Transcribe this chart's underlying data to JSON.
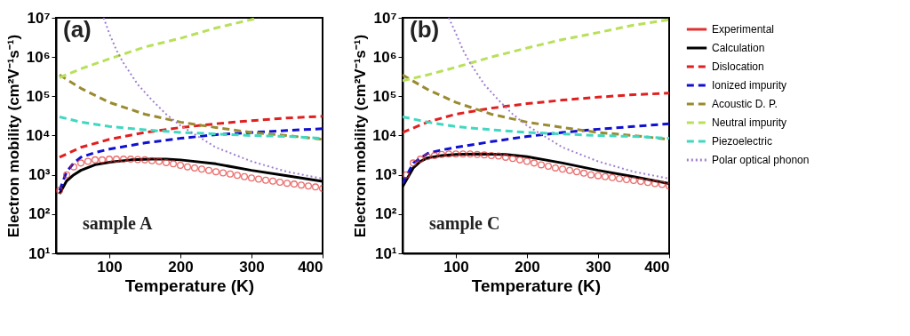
{
  "chart_data": [
    {
      "type": "line",
      "xlabel": "Temperature (K)",
      "ylabel": "Electron mobility (cm²V⁻¹s⁻¹)",
      "log": "y",
      "xlim": [
        25,
        400
      ],
      "xticks": [
        100,
        200,
        300,
        400
      ],
      "ylim": [
        10,
        10000000
      ],
      "yticks": [
        {
          "value": 10,
          "label": "10¹"
        },
        {
          "value": 100,
          "label": "10²"
        },
        {
          "value": 1000,
          "label": "10³"
        },
        {
          "value": 10000,
          "label": "10⁴"
        },
        {
          "value": 100000,
          "label": "10⁵"
        },
        {
          "value": 1000000,
          "label": "10⁶"
        },
        {
          "value": 10000000,
          "label": "10⁷"
        }
      ],
      "grid": false,
      "legend": false,
      "annotations": [
        "(a)",
        "sample A"
      ],
      "series": [
        {
          "type": "scatter",
          "marker": "circle",
          "color": "#e03030",
          "x": [
            30,
            40,
            50,
            60,
            70,
            80,
            90,
            100,
            110,
            120,
            130,
            140,
            150,
            160,
            170,
            180,
            190,
            200,
            210,
            220,
            230,
            240,
            250,
            260,
            270,
            280,
            290,
            300,
            310,
            320,
            330,
            340,
            350,
            360,
            370,
            380,
            390,
            400
          ],
          "values": [
            400,
            1000,
            1600,
            2000,
            2200,
            2400,
            2400,
            2500,
            2500,
            2500,
            2500,
            2450,
            2400,
            2300,
            2200,
            2050,
            1900,
            1750,
            1600,
            1500,
            1400,
            1300,
            1200,
            1120,
            1050,
            970,
            900,
            830,
            780,
            730,
            690,
            650,
            610,
            580,
            550,
            520,
            490,
            450
          ]
        },
        {
          "line_style": "solid",
          "color": "#000000",
          "x": [
            30,
            40,
            50,
            60,
            80,
            100,
            130,
            160,
            180,
            200,
            250,
            300,
            350,
            400
          ],
          "values": [
            330,
            700,
            1000,
            1300,
            1800,
            2100,
            2400,
            2500,
            2500,
            2400,
            1900,
            1300,
            950,
            680
          ]
        },
        {
          "line_style": "dashed",
          "color": "#e02020",
          "x": [
            30,
            60,
            100,
            150,
            200,
            250,
            300,
            350,
            400
          ],
          "values": [
            2800,
            5000,
            8000,
            12000,
            16000,
            20000,
            24000,
            28000,
            31000
          ]
        },
        {
          "line_style": "dashed",
          "color": "#1010d0",
          "x": [
            30,
            40,
            50,
            60,
            80,
            100,
            150,
            200,
            250,
            300,
            350,
            400
          ],
          "values": [
            400,
            1200,
            2000,
            2800,
            3700,
            4500,
            6500,
            8500,
            10500,
            12000,
            13500,
            15000
          ]
        },
        {
          "line_style": "dashed",
          "color": "#9a8a30",
          "x": [
            30,
            60,
            100,
            150,
            200,
            250,
            300,
            350,
            400
          ],
          "values": [
            350000,
            160000,
            70000,
            35000,
            22000,
            16000,
            12000,
            10000,
            8000
          ]
        },
        {
          "line_style": "dashed",
          "color": "#b8e05a",
          "x": [
            30,
            60,
            100,
            150,
            200,
            250,
            300,
            310
          ],
          "values": [
            300000,
            500000,
            900000,
            1800000,
            3000000,
            5500000,
            9000000,
            10000000
          ]
        },
        {
          "line_style": "dashed",
          "color": "#40d8c0",
          "x": [
            30,
            60,
            100,
            150,
            200,
            250,
            300,
            350,
            400
          ],
          "values": [
            30000,
            22000,
            17000,
            14000,
            12000,
            11000,
            10000,
            9500,
            8500
          ]
        },
        {
          "line_style": "dotted",
          "color": "#a080d0",
          "x": [
            92,
            100,
            110,
            120,
            140,
            160,
            180,
            200,
            250,
            300,
            350,
            400
          ],
          "values": [
            10000000,
            4000000,
            1500000,
            700000,
            200000,
            80000,
            35000,
            18000,
            5000,
            2200,
            1200,
            800
          ]
        }
      ]
    },
    {
      "type": "line",
      "xlabel": "Temperature (K)",
      "ylabel": "Electron mobility (cm²V⁻¹s⁻¹)",
      "log": "y",
      "xlim": [
        25,
        400
      ],
      "xticks": [
        100,
        200,
        300,
        400
      ],
      "ylim": [
        10,
        10000000
      ],
      "yticks": [
        {
          "value": 10,
          "label": "10¹"
        },
        {
          "value": 100,
          "label": "10²"
        },
        {
          "value": 1000,
          "label": "10³"
        },
        {
          "value": 10000,
          "label": "10⁴"
        },
        {
          "value": 100000,
          "label": "10⁵"
        },
        {
          "value": 1000000,
          "label": "10⁶"
        },
        {
          "value": 10000000,
          "label": "10⁷"
        }
      ],
      "grid": false,
      "legend": "right",
      "annotations": [
        "(b)",
        "sample C"
      ],
      "series": [
        {
          "name": "Experimental",
          "type": "scatter",
          "marker": "circle",
          "color": "#e03030",
          "x": [
            30,
            40,
            50,
            60,
            70,
            80,
            90,
            100,
            110,
            120,
            130,
            140,
            150,
            160,
            170,
            180,
            190,
            200,
            210,
            220,
            230,
            240,
            250,
            260,
            270,
            280,
            290,
            300,
            310,
            320,
            330,
            340,
            350,
            360,
            370,
            380,
            390,
            400
          ],
          "values": [
            1000,
            2000,
            2500,
            2900,
            3100,
            3300,
            3400,
            3400,
            3400,
            3400,
            3300,
            3200,
            3100,
            3000,
            2800,
            2600,
            2400,
            2200,
            2000,
            1800,
            1650,
            1500,
            1400,
            1300,
            1200,
            1100,
            1000,
            950,
            900,
            850,
            800,
            760,
            720,
            680,
            640,
            600,
            570,
            520
          ]
        },
        {
          "name": "Calculation",
          "line_style": "solid",
          "color": "#000000",
          "x": [
            25,
            40,
            50,
            60,
            80,
            100,
            130,
            170,
            200,
            250,
            300,
            350,
            400
          ],
          "values": [
            500,
            1500,
            2200,
            2700,
            3100,
            3300,
            3400,
            3300,
            2900,
            2000,
            1300,
            900,
            600
          ]
        },
        {
          "name": "Dislocation",
          "line_style": "dashed",
          "color": "#e02020",
          "x": [
            25,
            60,
            100,
            150,
            200,
            250,
            300,
            350,
            400
          ],
          "values": [
            12000,
            22000,
            35000,
            50000,
            65000,
            80000,
            95000,
            110000,
            120000
          ]
        },
        {
          "name": "Ionized impurity",
          "line_style": "dashed",
          "color": "#1010d0",
          "x": [
            25,
            40,
            60,
            80,
            100,
            150,
            200,
            250,
            300,
            350,
            400
          ],
          "values": [
            600,
            2000,
            3500,
            4300,
            5000,
            7000,
            9500,
            12000,
            14500,
            17000,
            20000
          ]
        },
        {
          "name": "Acoustic D. P.",
          "line_style": "dashed",
          "color": "#9a8a30",
          "x": [
            25,
            60,
            100,
            150,
            200,
            250,
            300,
            350,
            400
          ],
          "values": [
            350000,
            150000,
            70000,
            35000,
            22000,
            16000,
            12000,
            10000,
            8000
          ]
        },
        {
          "name": "Neutral impurity",
          "line_style": "dashed",
          "color": "#b8e05a",
          "x": [
            25,
            60,
            100,
            150,
            200,
            250,
            300,
            350,
            400
          ],
          "values": [
            250000,
            350000,
            550000,
            1000000,
            1700000,
            2800000,
            4200000,
            6500000,
            9000000
          ]
        },
        {
          "name": "Piezoelectric",
          "line_style": "dashed",
          "color": "#40d8c0",
          "x": [
            25,
            60,
            100,
            150,
            200,
            250,
            300,
            350,
            400
          ],
          "values": [
            30000,
            22000,
            17000,
            14000,
            12000,
            11000,
            10000,
            9500,
            8500
          ]
        },
        {
          "name": "Polar optical phonon",
          "line_style": "dotted",
          "color": "#a080d0",
          "x": [
            90,
            100,
            110,
            120,
            140,
            160,
            180,
            200,
            250,
            300,
            350,
            400
          ],
          "values": [
            10000000,
            4000000,
            1500000,
            700000,
            200000,
            80000,
            35000,
            18000,
            5000,
            2200,
            1200,
            800
          ]
        }
      ]
    }
  ]
}
